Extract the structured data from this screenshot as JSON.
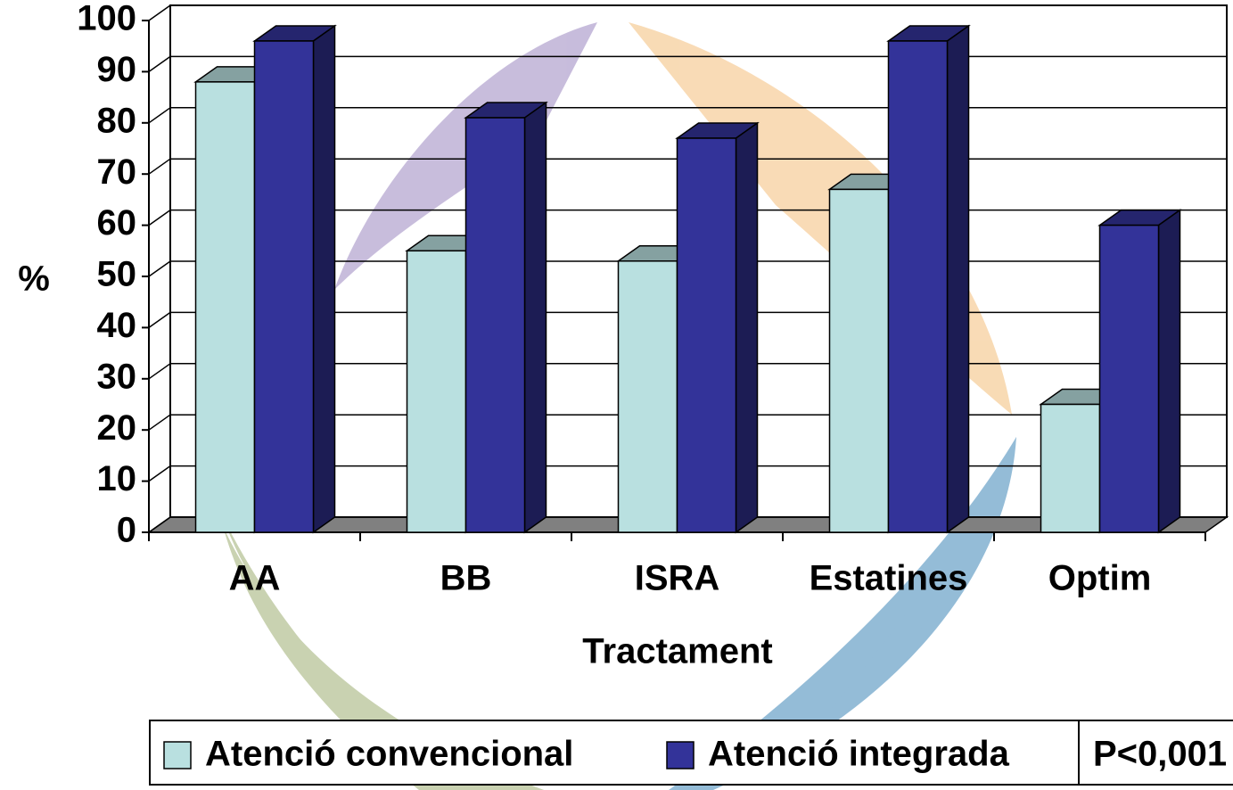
{
  "chart_data": {
    "type": "bar",
    "xlabel": "Tractament",
    "ylabel": "%",
    "categories": [
      "AA",
      "BB",
      "ISRA",
      "Estatines",
      "Optim"
    ],
    "series": [
      {
        "name": "Atenció convencional",
        "color": "#b9e0e0",
        "values": [
          88,
          55,
          53,
          67,
          25
        ]
      },
      {
        "name": "Atenció integrada",
        "color": "#333399",
        "values": [
          96,
          81,
          77,
          96,
          60
        ]
      }
    ],
    "ylim": [
      0,
      100
    ],
    "yticks": [
      0,
      10,
      20,
      30,
      40,
      50,
      60,
      70,
      80,
      90,
      100
    ],
    "grid": true,
    "annotation": "P<0,001"
  }
}
